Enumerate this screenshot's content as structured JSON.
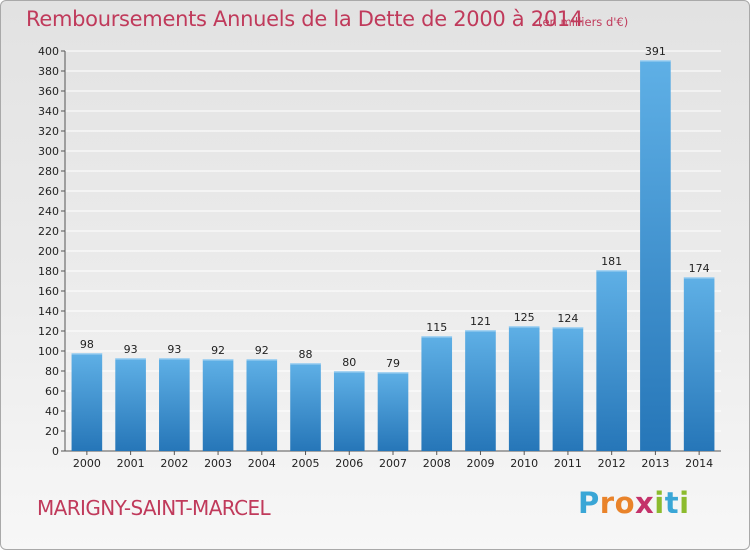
{
  "header": {
    "title": "Remboursements Annuels de la Dette de 2000 à 2014",
    "subtitle": "(en milliers d'€)"
  },
  "footer": {
    "commune": "MARIGNY-SAINT-MARCEL",
    "logo_text": "Proxiti"
  },
  "colors": {
    "title": "#c03a5b",
    "bar_top": "#5fb0e6",
    "bar_bottom": "#2676b8",
    "grid": "#ffffff"
  },
  "chart_data": {
    "type": "bar",
    "title": "Remboursements Annuels de la Dette de 2000 à 2014",
    "xlabel": "",
    "ylabel": "",
    "categories": [
      "2000",
      "2001",
      "2002",
      "2003",
      "2004",
      "2005",
      "2006",
      "2007",
      "2008",
      "2009",
      "2010",
      "2011",
      "2012",
      "2013",
      "2014"
    ],
    "values": [
      98,
      93,
      93,
      92,
      92,
      88,
      80,
      79,
      115,
      121,
      125,
      124,
      181,
      391,
      174
    ],
    "ylim": [
      0,
      400
    ],
    "ytick_step": 20,
    "grid": true,
    "legend": "none"
  }
}
